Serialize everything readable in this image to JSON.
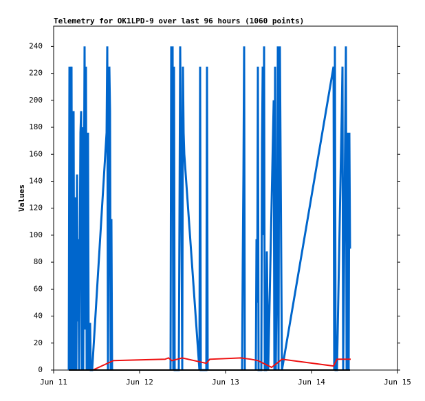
{
  "chart_data": {
    "type": "line",
    "title": "Telemetry for OK1LPD-9 over last 96 hours (1060 points)",
    "y_label": "Values",
    "xlim": [
      0,
      4
    ],
    "xticks": [
      {
        "value": 0,
        "label": "Jun 11"
      },
      {
        "value": 1,
        "label": "Jun 12"
      },
      {
        "value": 2,
        "label": "Jun 13"
      },
      {
        "value": 3,
        "label": "Jun 14"
      },
      {
        "value": 4,
        "label": "Jun 15"
      }
    ],
    "ylim": [
      0,
      255
    ],
    "yticks": [
      0,
      20,
      40,
      60,
      80,
      100,
      120,
      140,
      160,
      180,
      200,
      220,
      240
    ],
    "grid": false,
    "series": [
      {
        "color": "#000000",
        "x": [
          0.176,
          3.448
        ],
        "values": [
          0,
          0
        ]
      },
      {
        "color": "#0066cc",
        "x": [
          0.176,
          0.184,
          0.192,
          0.2,
          0.208,
          0.216,
          0.224,
          0.232,
          0.24,
          0.248,
          0.256,
          0.264,
          0.272,
          0.28,
          0.288,
          0.296,
          0.312,
          0.32,
          0.328,
          0.336,
          0.344,
          0.36,
          0.368,
          0.376,
          0.384,
          0.392,
          0.4,
          0.408,
          0.424,
          0.432,
          0.448,
          0.616,
          0.624,
          0.632,
          0.648,
          0.656,
          0.664,
          0.672,
          0.68,
          1.0,
          1.36,
          1.368,
          1.376,
          1.384,
          1.392,
          1.4,
          1.408,
          1.456,
          1.464,
          1.472,
          1.48,
          1.488,
          1.496,
          1.504,
          1.512,
          1.52,
          1.696,
          1.704,
          1.712,
          1.776,
          1.784,
          1.792,
          2.0,
          2.192,
          2.2,
          2.208,
          2.216,
          2.224,
          2.3,
          2.352,
          2.36,
          2.368,
          2.376,
          2.384,
          2.416,
          2.424,
          2.432,
          2.44,
          2.448,
          2.456,
          2.472,
          2.48,
          2.496,
          2.56,
          2.568,
          2.576,
          2.584,
          2.6,
          2.608,
          2.616,
          2.624,
          2.632,
          2.656,
          3.256,
          3.264,
          3.272,
          3.28,
          3.296,
          3.352,
          3.36,
          3.368,
          3.4,
          3.408,
          3.424,
          3.432,
          3.44,
          3.448
        ],
        "values": [
          0,
          225,
          0,
          168,
          225,
          0,
          135,
          192,
          0,
          96,
          128,
          0,
          145,
          36,
          97,
          0,
          176,
          192,
          0,
          180,
          0,
          240,
          30,
          225,
          0,
          160,
          176,
          0,
          35,
          0,
          0,
          176,
          240,
          0,
          225,
          192,
          0,
          112,
          0,
          null,
          0,
          240,
          145,
          240,
          0,
          225,
          0,
          0,
          112,
          240,
          176,
          100,
          0,
          225,
          176,
          160,
          0,
          225,
          0,
          0,
          225,
          0,
          null,
          0,
          80,
          145,
          240,
          0,
          null,
          0,
          97,
          50,
          225,
          0,
          0,
          168,
          225,
          100,
          240,
          0,
          0,
          88,
          0,
          200,
          0,
          225,
          0,
          100,
          240,
          0,
          225,
          240,
          0,
          225,
          0,
          240,
          0,
          0,
          192,
          225,
          0,
          240,
          0,
          176,
          0,
          176,
          90
        ]
      },
      {
        "color": "#ee1111",
        "x": [
          0.456,
          0.696,
          1.296,
          1.336,
          1.376,
          1.496,
          1.776,
          1.816,
          2.176,
          2.296,
          2.376,
          2.536,
          2.656,
          3.256,
          3.296,
          3.456
        ],
        "values": [
          0,
          7,
          8,
          9,
          7,
          9,
          5,
          8,
          9,
          8,
          7,
          2,
          8,
          3,
          8,
          8
        ]
      }
    ]
  }
}
